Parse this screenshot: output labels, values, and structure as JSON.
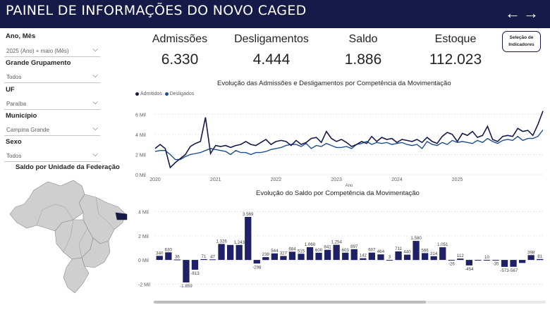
{
  "header": {
    "title": "PAINEL DE INFORMAÇÕES DO NOVO CAGED",
    "back_icon": "arrow-left-icon",
    "forward_icon": "arrow-right-icon",
    "back_glyph": "←",
    "forward_glyph": "→"
  },
  "filters": [
    {
      "label": "Ano, Mês",
      "value": "2025 (Ano) + maio (Mês)"
    },
    {
      "label": "Grande Grupamento",
      "value": "Todos"
    },
    {
      "label": "UF",
      "value": "Paraíba"
    },
    {
      "label": "Município",
      "value": "Campina Grande"
    },
    {
      "label": "Sexo",
      "value": "Todos"
    }
  ],
  "chevron_glyph": "⌵",
  "map": {
    "title": "Saldo por Unidade da Federação",
    "highlight_color": "#161a48",
    "base_color": "#c8c8c8"
  },
  "kpis": [
    {
      "label": "Admissões",
      "value": "6.330"
    },
    {
      "label": "Desligamentos",
      "value": "4.444"
    },
    {
      "label": "Saldo",
      "value": "1.886"
    },
    {
      "label": "Estoque",
      "value": "112.023"
    }
  ],
  "indicator_button": {
    "line1": "Seleção de",
    "line2": "Indicadores"
  },
  "colors": {
    "admitidos": "#161a48",
    "desligados": "#1f4e8c",
    "bar": "#1f2166",
    "header_bg": "#161a48"
  },
  "chart_data": [
    {
      "type": "line",
      "title": "Evolução das Admissões e Desligamentos por Competência da Movimentação",
      "xlabel": "Ano",
      "ylabel": "",
      "x_ticks": [
        "2020",
        "2021",
        "2022",
        "2023",
        "2024",
        "2025"
      ],
      "y_ticks": [
        "0 Mil",
        "2 Mil",
        "4 Mil",
        "6 Mil"
      ],
      "ylim": [
        0,
        7000
      ],
      "x_start": 2020.0,
      "x_step_months": 1,
      "series": [
        {
          "name": "Admitidos",
          "values": [
            2600,
            3000,
            2600,
            700,
            1200,
            1600,
            2000,
            2800,
            3100,
            3300,
            5700,
            2100,
            2900,
            2800,
            2900,
            2700,
            2900,
            3000,
            3300,
            3000,
            2900,
            3200,
            3500,
            3000,
            3300,
            3400,
            3300,
            2900,
            3400,
            3000,
            3200,
            3600,
            3700,
            3200,
            4300,
            3600,
            3300,
            3500,
            3200,
            2800,
            3000,
            3300,
            3100,
            3800,
            3300,
            3700,
            3500,
            3600,
            3200,
            3500,
            3400,
            3300,
            3500,
            3200,
            3700,
            3300,
            3100,
            3800,
            4200,
            4000,
            3300,
            4100,
            3900,
            4300,
            3700,
            3900,
            4800,
            3500,
            3300,
            3800,
            3900,
            3800,
            4600,
            4300,
            4400,
            3900,
            5000,
            6330
          ]
        },
        {
          "name": "Desligados",
          "values": [
            2300,
            2400,
            2400,
            2000,
            1500,
            1500,
            1800,
            2000,
            2100,
            2200,
            2400,
            2600,
            2500,
            2400,
            2300,
            2000,
            2400,
            2200,
            2200,
            2000,
            2200,
            2200,
            2300,
            2500,
            2600,
            2700,
            2900,
            3000,
            3000,
            2800,
            3100,
            2600,
            2900,
            2800,
            3100,
            2900,
            2700,
            2700,
            2800,
            2600,
            3000,
            3100,
            3300,
            3000,
            3200,
            3100,
            3200,
            3000,
            3100,
            3200,
            3000,
            2900,
            3000,
            2600,
            3300,
            3000,
            2900,
            3200,
            3000,
            3400,
            3200,
            3300,
            3200,
            3100,
            3400,
            3200,
            3600,
            3300,
            3100,
            3400,
            3500,
            3400,
            3800,
            3400,
            3600,
            3600,
            3800,
            4444
          ]
        }
      ]
    },
    {
      "type": "bar",
      "title": "Evolução do Saldo por Competência da Movimentação",
      "y_ticks": [
        "4 Mil",
        "2 Mil",
        "0 Mil",
        "-2 Mil"
      ],
      "ylim": [
        -2500,
        4500
      ],
      "values": [
        340,
        630,
        36,
        -1859,
        -813,
        71,
        47,
        1326,
        1243,
        1243,
        3569,
        -298,
        238,
        544,
        327,
        684,
        515,
        1060,
        600,
        841,
        1254,
        603,
        897,
        142,
        607,
        464,
        3,
        711,
        440,
        1580,
        566,
        314,
        1051,
        -26,
        112,
        -454,
        -50,
        10,
        -35,
        -573,
        -567,
        -250,
        398,
        81
      ],
      "labels": [
        "340",
        "630",
        "36",
        "-1.859",
        "-813",
        "71",
        "47",
        "1.326",
        "",
        "1.243",
        "3.569",
        "-298",
        "238",
        "544",
        "327",
        "684",
        "515",
        "1.060",
        "600",
        "841",
        "1.254",
        "603",
        "897",
        "142",
        "607",
        "464",
        "3",
        "711",
        "440",
        "1.580",
        "566",
        "314",
        "1.051",
        "-26",
        "112",
        "-454",
        "",
        "10",
        "-35",
        "-573",
        "-567",
        "",
        "398",
        "81"
      ]
    }
  ]
}
